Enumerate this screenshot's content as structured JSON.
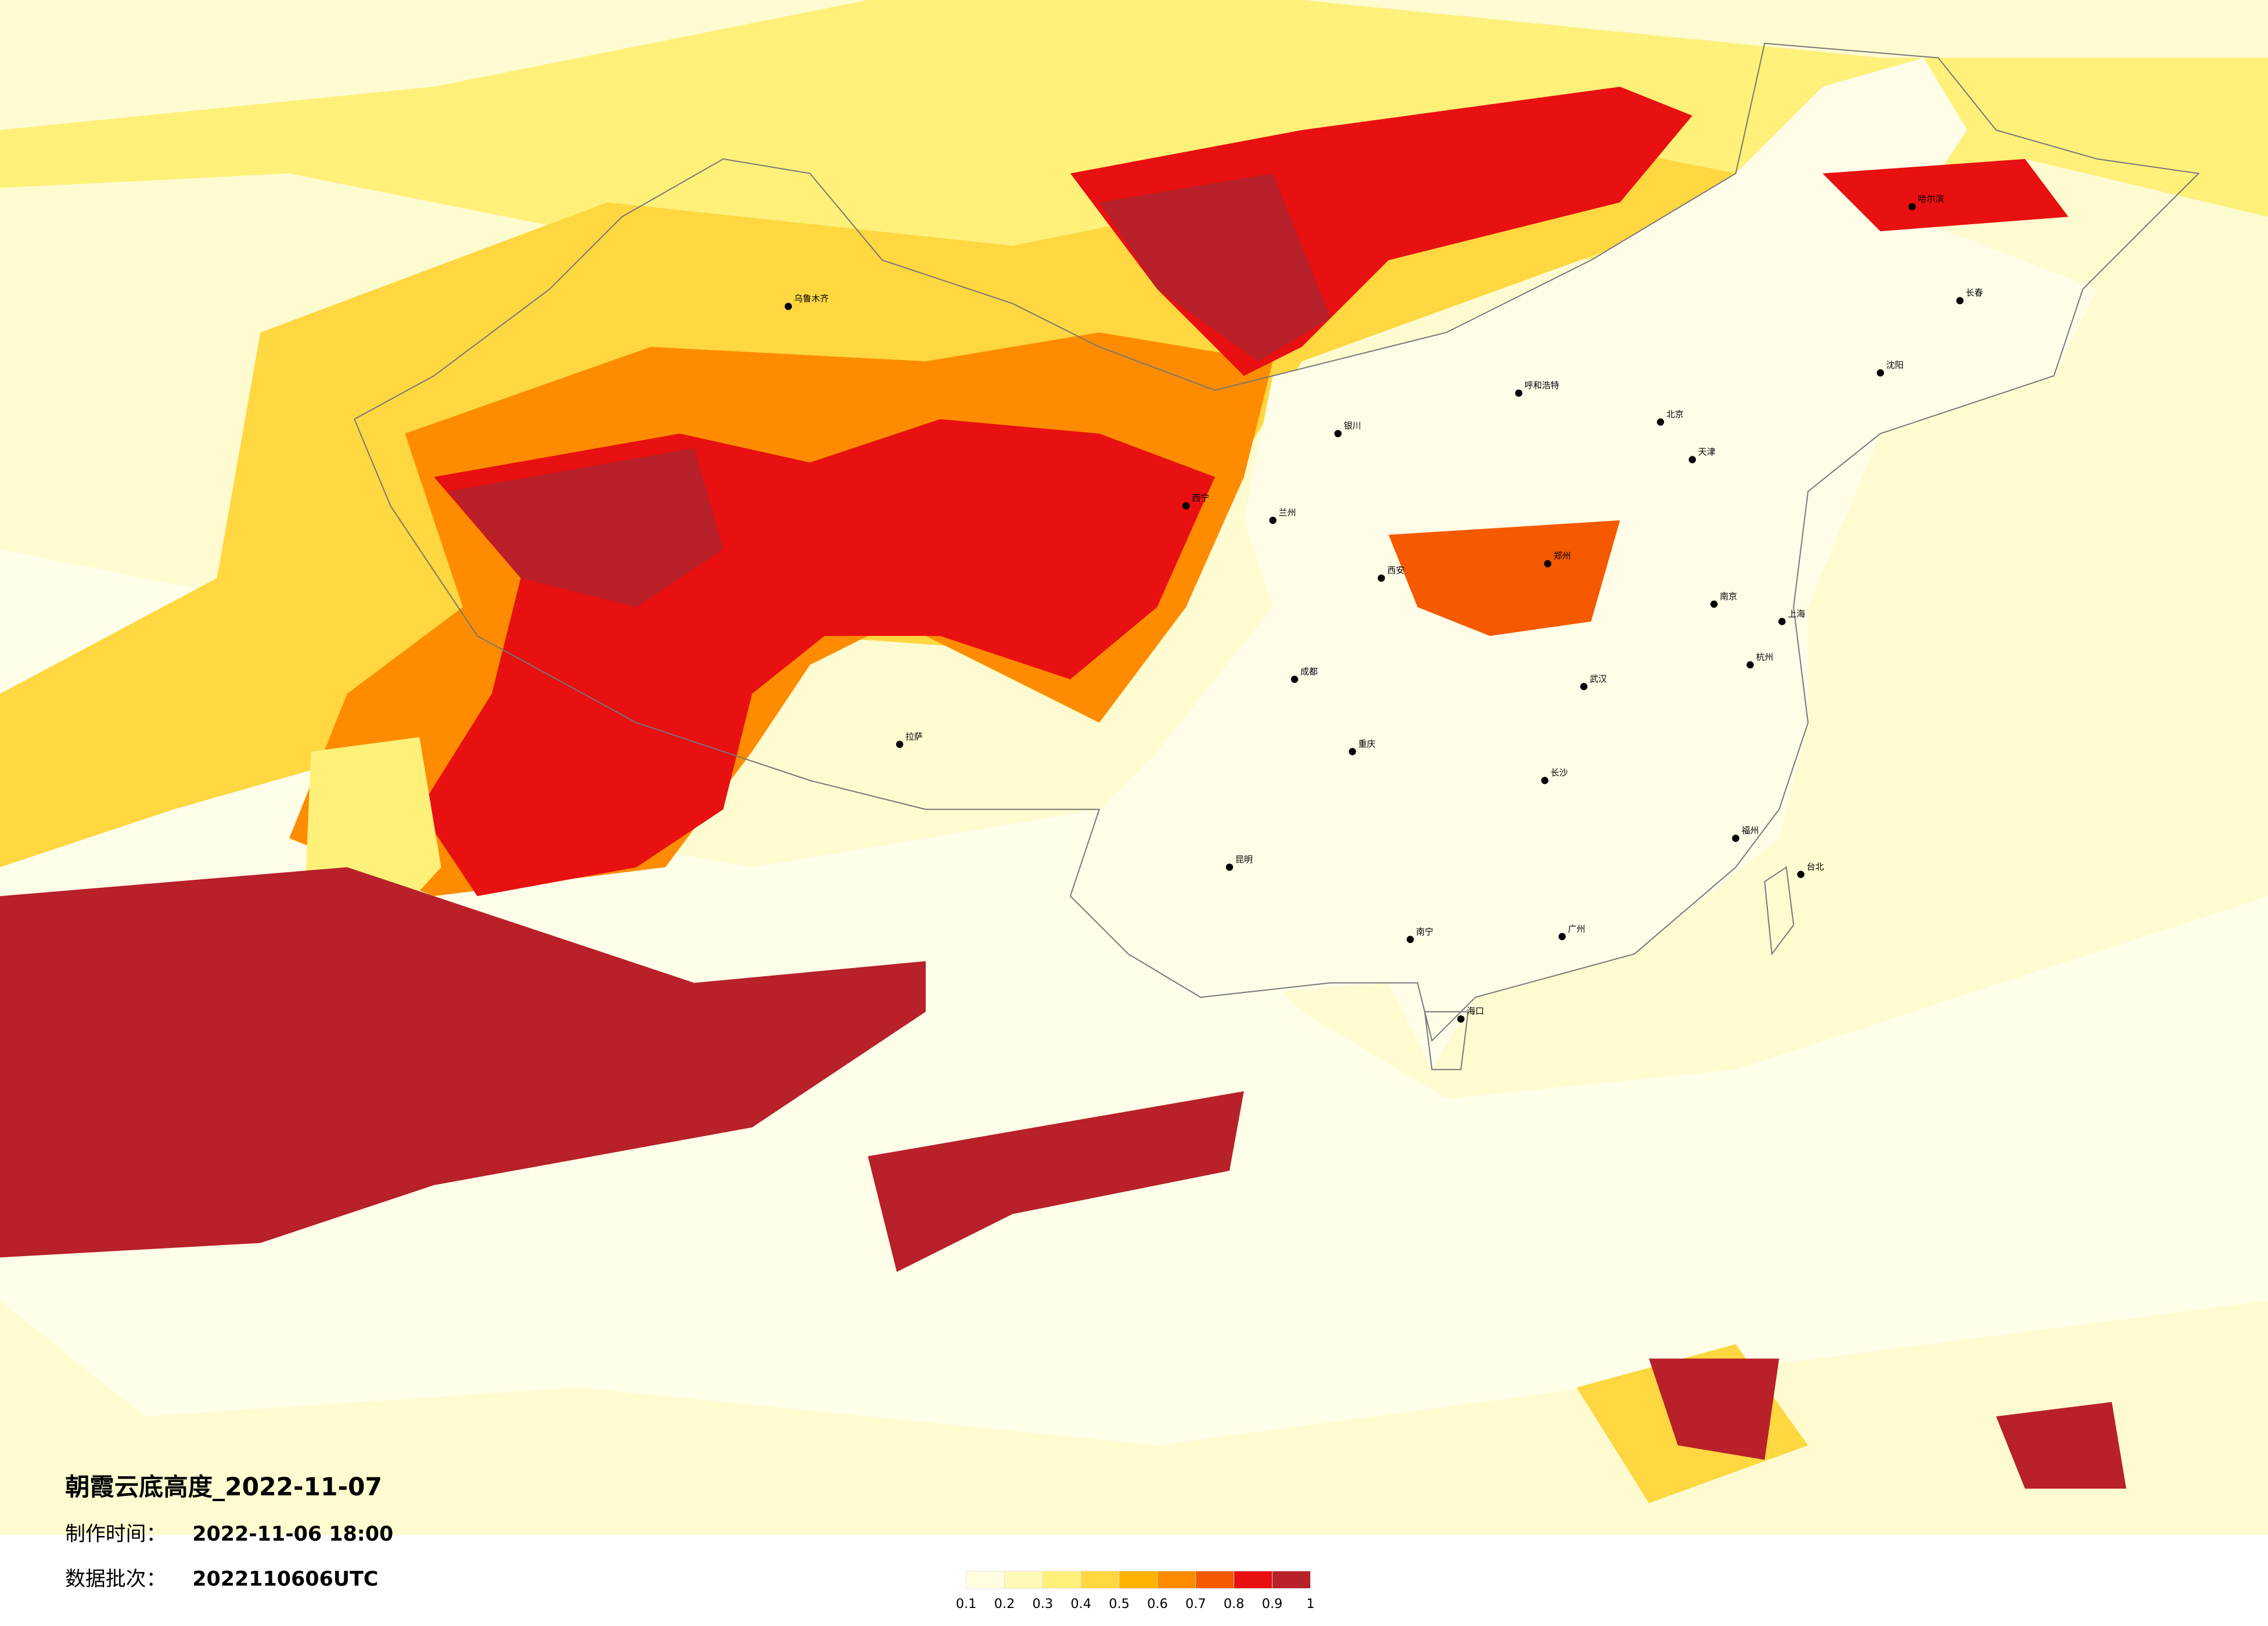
{
  "header": {
    "title": "朝霞云底高度_2022-11-07",
    "made_label": "制作时间：",
    "made_value": "2022-11-06 18:00",
    "batch_label": "数据批次：",
    "batch_value": "2022110606UTC"
  },
  "legend": {
    "ticks": [
      0.1,
      0.2,
      0.3,
      0.4,
      0.5,
      0.6,
      0.7,
      0.8,
      0.9,
      1
    ],
    "colors": [
      "#fffde0",
      "#fff9b8",
      "#fff07a",
      "#ffd740",
      "#ffb300",
      "#ff8c00",
      "#f55a00",
      "#e81010",
      "#b8202a"
    ]
  },
  "cities": [
    "北京",
    "天津",
    "上海",
    "广州",
    "乌鲁木齐",
    "拉萨",
    "哈尔滨",
    "沈阳",
    "西安",
    "成都",
    "重庆",
    "昆明",
    "武汉",
    "长沙",
    "南京",
    "杭州",
    "福州",
    "台北",
    "海口",
    "呼和浩特",
    "兰州",
    "西宁",
    "银川",
    "郑州",
    "南宁",
    "长春"
  ]
}
